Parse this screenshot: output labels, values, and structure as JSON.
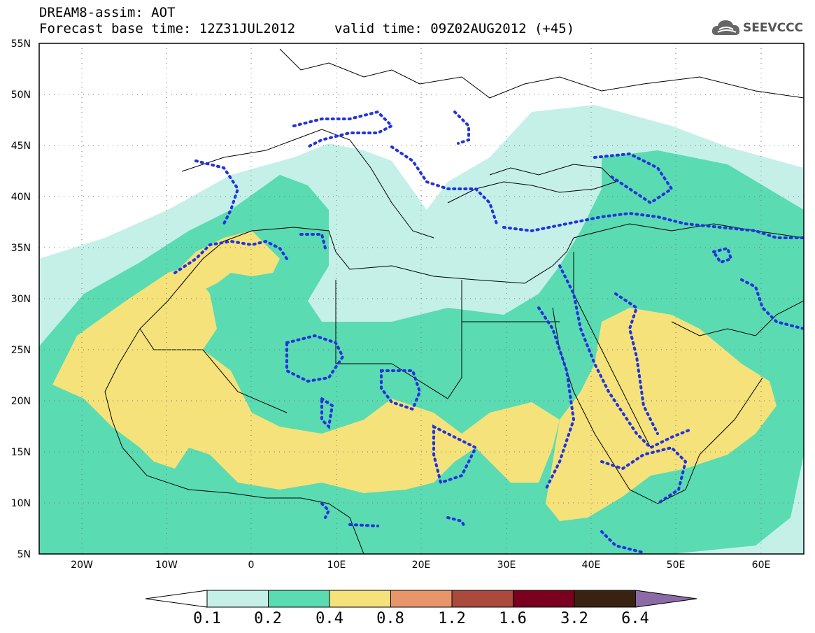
{
  "header": {
    "title_line1": "DREAM8-assim: AOT",
    "title_line2": "Forecast base time: 12Z31JUL2012",
    "valid_time": "valid time: 09Z02AUG2012 (+45)"
  },
  "logo": {
    "text": "SEEVCCC",
    "icon": "cloud-logo-icon"
  },
  "map": {
    "lon_range": [
      -25,
      65
    ],
    "lat_range": [
      5,
      55
    ],
    "lat_labels": [
      "55N",
      "50N",
      "45N",
      "40N",
      "35N",
      "30N",
      "25N",
      "20N",
      "15N",
      "10N",
      "5N"
    ],
    "lon_labels": [
      "20W",
      "10W",
      "0",
      "10E",
      "20E",
      "30E",
      "40E",
      "50E",
      "60E"
    ],
    "grid": true,
    "contour_line_color": "#2233dd"
  },
  "colorbar": {
    "labels": [
      "0.1",
      "0.2",
      "0.4",
      "0.8",
      "1.2",
      "1.6",
      "3.2",
      "6.4"
    ],
    "colors": [
      "#ffffff",
      "#c4f0e8",
      "#5adbb2",
      "#f5e27a",
      "#e8956a",
      "#a94a3c",
      "#7a0020",
      "#3a2212",
      "#8c6aa6"
    ]
  }
}
